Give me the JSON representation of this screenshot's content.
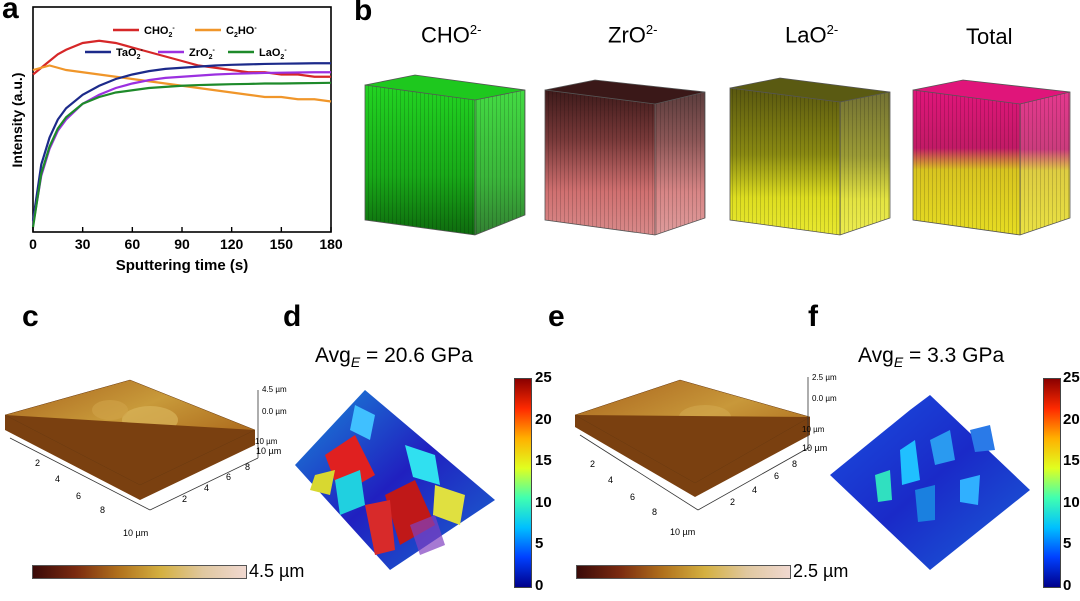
{
  "panels": {
    "a": "a",
    "b": "b",
    "c": "c",
    "d": "d",
    "e": "e",
    "f": "f"
  },
  "chart_data": {
    "type": "line",
    "title": "",
    "xlabel": "Sputtering time (s)",
    "ylabel": "Intensity (a.u.)",
    "xlim": [
      0,
      180
    ],
    "ylim": [
      0,
      100
    ],
    "xticks": [
      "0",
      "30",
      "60",
      "90",
      "120",
      "150",
      "180"
    ],
    "x": [
      0,
      5,
      10,
      15,
      20,
      30,
      40,
      50,
      60,
      70,
      80,
      90,
      100,
      110,
      120,
      130,
      140,
      150,
      160,
      170,
      180
    ],
    "series": [
      {
        "name": "CHO2-",
        "sub": "2",
        "sup": "-",
        "base": "CHO",
        "color": "#d62728",
        "values": [
          70,
          73,
          76,
          79,
          81,
          84,
          85,
          84,
          82,
          80,
          78,
          76,
          74,
          73,
          72,
          71,
          71,
          70,
          70,
          69,
          69
        ]
      },
      {
        "name": "C2HO-",
        "sub": "2",
        "sup": "-",
        "base": "C",
        "tail": "HO",
        "color": "#f0962a",
        "values": [
          72,
          73,
          74,
          73,
          72,
          71,
          70,
          69,
          68,
          67,
          66,
          65,
          64,
          63,
          62,
          61,
          60,
          60,
          59,
          59,
          58
        ]
      },
      {
        "name": "TaO2-",
        "sub": "2",
        "sup": "-",
        "base": "TaO",
        "color": "#1c2a8a",
        "values": [
          5,
          30,
          42,
          50,
          55,
          61,
          65,
          68,
          70,
          71.5,
          72.5,
          73,
          73.5,
          74,
          74.3,
          74.5,
          74.7,
          74.8,
          74.9,
          75,
          75
        ]
      },
      {
        "name": "ZrO2-",
        "sub": "2",
        "sup": "-",
        "base": "ZrO",
        "color": "#9b30e0",
        "values": [
          3,
          25,
          37,
          45,
          50,
          57,
          61,
          64,
          66,
          67.5,
          68.5,
          69,
          69.5,
          70,
          70.3,
          70.5,
          70.7,
          70.8,
          70.9,
          71,
          71
        ]
      },
      {
        "name": "LaO2-",
        "sub": "2",
        "sup": "-",
        "base": "LaO",
        "color": "#1e8a2a",
        "values": [
          2,
          26,
          38,
          46,
          51,
          57,
          60,
          62,
          63,
          64,
          64.5,
          65,
          65.3,
          65.5,
          65.7,
          65.8,
          66,
          66,
          66.1,
          66.2,
          66.3
        ]
      }
    ]
  },
  "panel_b": {
    "titles": [
      {
        "base": "CHO",
        "sup": "2-"
      },
      {
        "base": "ZrO",
        "sup": "2-"
      },
      {
        "base": "LaO",
        "sup": "2-"
      },
      {
        "base": "Total",
        "sup": ""
      }
    ],
    "colors": {
      "cho_top": "#1fd21f",
      "cho_side": "#17a817",
      "cho_dark": "#0d5d0d",
      "zro_top": "#4a2020",
      "zro_side": "#d87a7a",
      "zro_dark": "#6a3a3a",
      "lao_top": "#6b6a10",
      "lao_side": "#e3e31f",
      "lao_dark": "#5c5a10",
      "tot_top": "#e01a7a",
      "tot_side": "#e0d020",
      "tot_dark": "#b0165e"
    }
  },
  "panel_c": {
    "z_top": "4.5 µm",
    "z_mid": "0.0 µm",
    "z_axis_label": "10 µm",
    "x_ticks": [
      "2",
      "4",
      "6",
      "8",
      "10 µm"
    ],
    "y_ticks": [
      "2",
      "4",
      "6",
      "8",
      "10 µm"
    ],
    "scale_label": "4.5 µm"
  },
  "panel_e": {
    "z_top": "2.5 µm",
    "z_mid": "0.0 µm",
    "z_axis_label": "10 µm",
    "x_ticks": [
      "2",
      "4",
      "6",
      "8",
      "10 µm"
    ],
    "y_ticks": [
      "2",
      "4",
      "6",
      "8",
      "10 µm"
    ],
    "scale_label": "2.5 µm"
  },
  "panel_d": {
    "avg_prefix": "Avg",
    "avg_sub": "E",
    "avg_value": " = 20.6 GPa",
    "colorbar_ticks": [
      "25",
      "20",
      "15",
      "10",
      "5",
      "0"
    ]
  },
  "panel_f": {
    "avg_prefix": "Avg",
    "avg_sub": "E",
    "avg_value": " = 3.3 GPa",
    "colorbar_ticks": [
      "25",
      "20",
      "15",
      "10",
      "5",
      "0"
    ]
  }
}
